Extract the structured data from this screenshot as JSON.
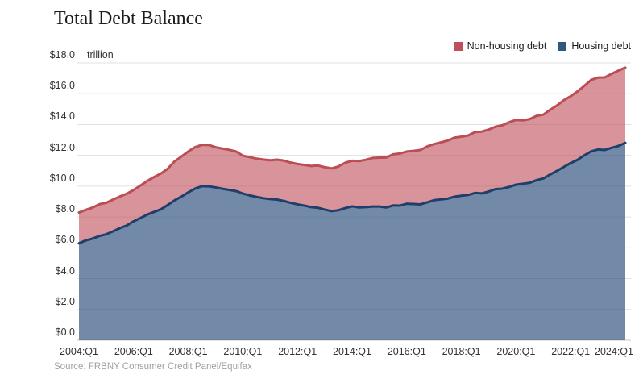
{
  "page": {
    "title": "Total Debt Balance",
    "unit_label": "trillion",
    "source": "Source: FRBNY Consumer Credit Panel/Equifax"
  },
  "legend": [
    {
      "label": "Non-housing debt",
      "color": "#bf4f5a"
    },
    {
      "label": "Housing debt",
      "color": "#2e5880"
    }
  ],
  "chart_data": {
    "type": "area",
    "stacked": true,
    "title": "Total Debt Balance",
    "unit": "$ trillion",
    "frequency": "quarterly",
    "x_start": "2004:Q1",
    "x_end": "2024:Q1",
    "x_tick_labels": [
      "2004:Q1",
      "2006:Q1",
      "2008:Q1",
      "2010:Q1",
      "2012:Q1",
      "2014:Q1",
      "2016:Q1",
      "2018:Q1",
      "2020:Q1",
      "2022:Q1",
      "2024:Q1"
    ],
    "y_tick_labels": [
      "$0.0",
      "$2.0",
      "$4.0",
      "$6.0",
      "$8.0",
      "$10.0",
      "$12.0",
      "$14.0",
      "$16.0",
      "$18.0"
    ],
    "y_tick_values": [
      0,
      2,
      4,
      6,
      8,
      10,
      12,
      14,
      16,
      18
    ],
    "ylim": [
      0,
      18
    ],
    "grid": true,
    "legend_position": "top-right",
    "colors": {
      "housing_fill": "rgba(45,80,125,0.67)",
      "housing_line": "#203e6a",
      "non_housing_fill": "rgba(190,76,86,0.60)",
      "non_housing_line": "#bb4d55",
      "gridline": "#e0e0e0",
      "axis_line": "#c9c9c9"
    },
    "series": [
      {
        "name": "Housing debt",
        "values": [
          6.29,
          6.48,
          6.6,
          6.77,
          6.88,
          7.07,
          7.28,
          7.45,
          7.72,
          7.93,
          8.16,
          8.33,
          8.5,
          8.78,
          9.08,
          9.32,
          9.6,
          9.84,
          10.0,
          9.99,
          9.92,
          9.83,
          9.76,
          9.68,
          9.52,
          9.4,
          9.3,
          9.22,
          9.16,
          9.13,
          9.04,
          8.92,
          8.82,
          8.74,
          8.64,
          8.6,
          8.48,
          8.38,
          8.44,
          8.58,
          8.69,
          8.62,
          8.64,
          8.68,
          8.68,
          8.62,
          8.75,
          8.74,
          8.86,
          8.84,
          8.82,
          8.95,
          9.09,
          9.14,
          9.19,
          9.32,
          9.38,
          9.43,
          9.56,
          9.53,
          9.65,
          9.81,
          9.84,
          9.95,
          10.1,
          10.16,
          10.22,
          10.39,
          10.5,
          10.76,
          10.99,
          11.25,
          11.5,
          11.71,
          12.0,
          12.26,
          12.38,
          12.35,
          12.49,
          12.61,
          12.81
        ]
      },
      {
        "name": "Non-housing debt",
        "values": [
          2.0,
          1.98,
          2.01,
          2.06,
          2.04,
          2.06,
          2.05,
          2.06,
          2.03,
          2.11,
          2.18,
          2.26,
          2.32,
          2.35,
          2.53,
          2.6,
          2.65,
          2.69,
          2.68,
          2.68,
          2.61,
          2.61,
          2.6,
          2.57,
          2.46,
          2.48,
          2.49,
          2.51,
          2.52,
          2.59,
          2.62,
          2.61,
          2.62,
          2.64,
          2.67,
          2.74,
          2.75,
          2.77,
          2.84,
          2.94,
          2.96,
          3.01,
          3.07,
          3.15,
          3.17,
          3.24,
          3.32,
          3.38,
          3.39,
          3.45,
          3.53,
          3.63,
          3.64,
          3.7,
          3.77,
          3.83,
          3.83,
          3.86,
          3.95,
          4.01,
          4.02,
          4.05,
          4.11,
          4.2,
          4.2,
          4.11,
          4.13,
          4.17,
          4.14,
          4.2,
          4.25,
          4.33,
          4.34,
          4.44,
          4.51,
          4.64,
          4.67,
          4.71,
          4.8,
          4.89,
          4.88
        ]
      }
    ]
  }
}
